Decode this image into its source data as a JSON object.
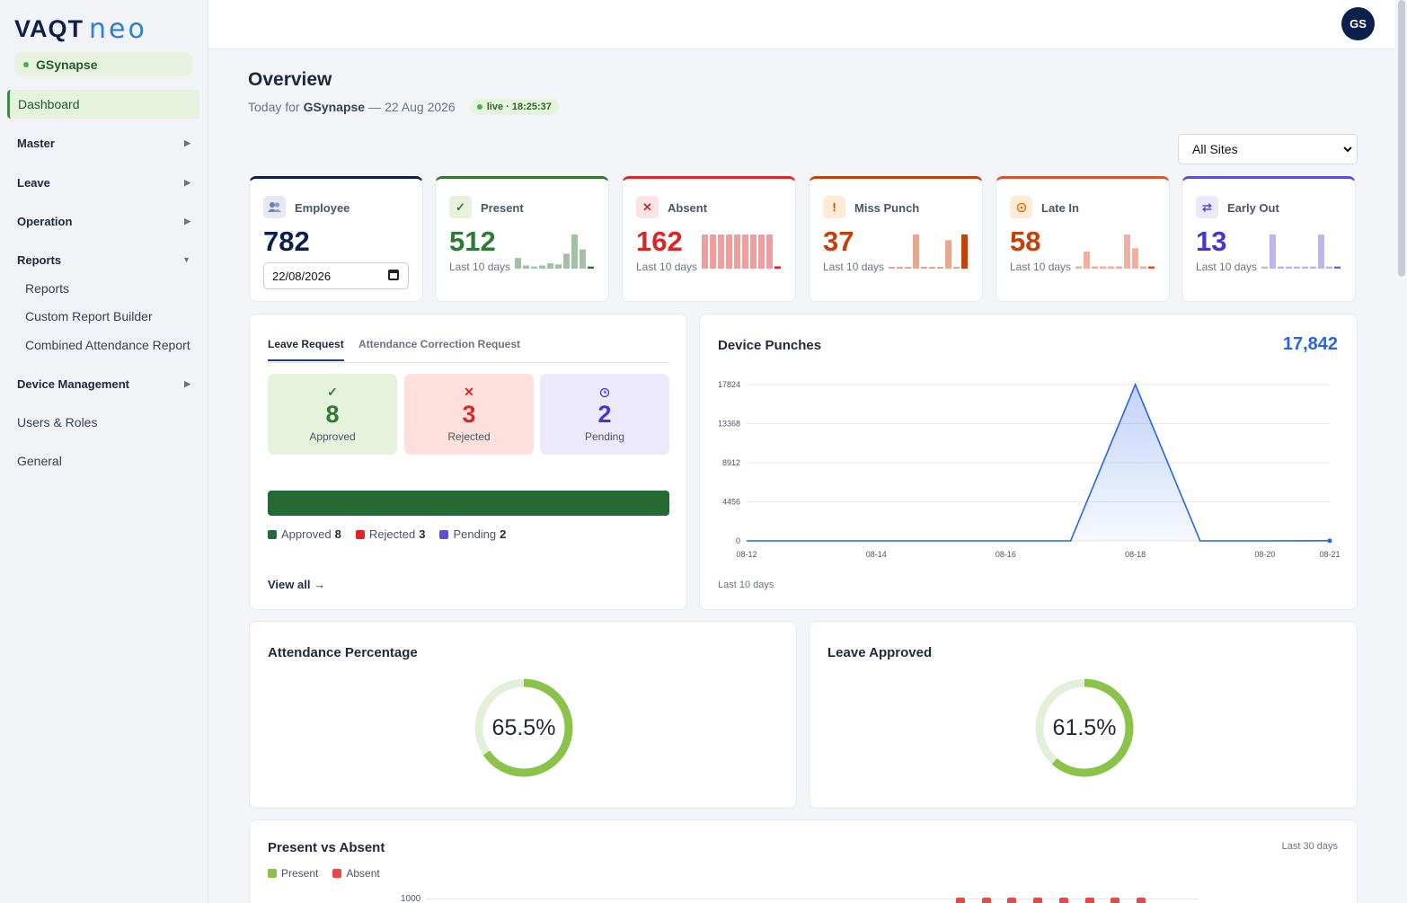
{
  "brand": {
    "name_a": "VAQT",
    "name_b": "neo"
  },
  "org": "GSynapse",
  "sidebar": {
    "items": [
      {
        "label": "Dashboard"
      },
      {
        "label": "Master"
      },
      {
        "label": "Leave"
      },
      {
        "label": "Operation"
      },
      {
        "label": "Reports"
      },
      {
        "label": "Device Management"
      },
      {
        "label": "Users & Roles"
      },
      {
        "label": "General"
      }
    ],
    "reports_sub": [
      "Reports",
      "Custom Report Builder",
      "Combined Attendance Report"
    ]
  },
  "user": {
    "initials": "GS"
  },
  "header": {
    "title": "Overview",
    "subtitle_prefix": "Today for",
    "org": "GSynapse",
    "subtitle_sep": "—",
    "date": "22 Aug 2026",
    "live": "live · 18:25:37"
  },
  "site_filter": {
    "value": "All Sites"
  },
  "stats": {
    "employee": {
      "label": "Employee",
      "value": "782",
      "date": "22/08/2026"
    },
    "present": {
      "label": "Present",
      "value": "512",
      "caption": "Last 10 days",
      "color": "#2f7a35",
      "spark": [
        10,
        3,
        2,
        3,
        5,
        4,
        14,
        32,
        18,
        2
      ]
    },
    "absent": {
      "label": "Absent",
      "value": "162",
      "caption": "Last 10 days",
      "color": "#dc2626",
      "spark": [
        30,
        30,
        30,
        30,
        30,
        30,
        30,
        30,
        30,
        2
      ]
    },
    "miss_punch": {
      "label": "Miss Punch",
      "value": "37",
      "caption": "Last 10 days",
      "color": "#c2410c",
      "spark": [
        2,
        2,
        2,
        36,
        2,
        2,
        2,
        30,
        2,
        36
      ]
    },
    "late_in": {
      "label": "Late In",
      "value": "58",
      "caption": "Last 10 days",
      "color": "#d9532e",
      "spark": [
        2,
        15,
        2,
        2,
        2,
        2,
        30,
        18,
        2,
        2
      ]
    },
    "early_out": {
      "label": "Early Out",
      "value": "13",
      "caption": "Last 10 days",
      "color": "#6b5be0",
      "spark": [
        2,
        32,
        2,
        2,
        2,
        2,
        2,
        32,
        2,
        2
      ]
    }
  },
  "leave_panel": {
    "tabs": [
      "Leave Request",
      "Attendance Correction Request"
    ],
    "approved": {
      "label": "Approved",
      "value": "8"
    },
    "rejected": {
      "label": "Rejected",
      "value": "3"
    },
    "pending": {
      "label": "Pending",
      "value": "2"
    },
    "view_all": "View all →"
  },
  "device_punches": {
    "title": "Device Punches",
    "total": "17,842",
    "caption": "Last 10 days"
  },
  "attendance_percentage": {
    "title": "Attendance Percentage",
    "value": "65.5%",
    "percent": 65.5
  },
  "leave_approved": {
    "title": "Leave Approved",
    "value": "61.5%",
    "percent": 61.5
  },
  "present_vs_absent": {
    "title": "Present vs Absent",
    "range": "Last 30 days",
    "legend": [
      "Present",
      "Absent"
    ],
    "ytick": "1000"
  },
  "chart_data": {
    "type": "area",
    "title": "Device Punches",
    "x": [
      "08-12",
      "08-13",
      "08-14",
      "08-15",
      "08-16",
      "08-17",
      "08-18",
      "08-19",
      "08-20",
      "08-21"
    ],
    "values": [
      0,
      0,
      0,
      0,
      0,
      0,
      17824,
      0,
      0,
      18
    ],
    "yticks": [
      0,
      4456,
      8912,
      13368,
      17824
    ],
    "xticks": [
      "08-12",
      "08-14",
      "08-16",
      "08-18",
      "08-20",
      "08-21"
    ],
    "ylim": [
      0,
      17824
    ],
    "color": "#2563eb"
  }
}
